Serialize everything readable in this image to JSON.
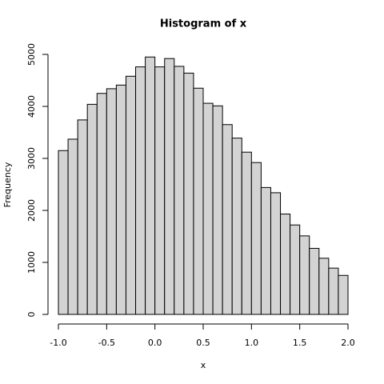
{
  "chart_data": {
    "type": "histogram",
    "title": "Histogram of x",
    "xlabel": "x",
    "ylabel": "Frequency",
    "bins": [
      -1.0,
      -0.9,
      -0.8,
      -0.7,
      -0.6,
      -0.5,
      -0.4,
      -0.3,
      -0.2,
      -0.1,
      0.0,
      0.1,
      0.2,
      0.3,
      0.4,
      0.5,
      0.6,
      0.7,
      0.8,
      0.9,
      1.0,
      1.1,
      1.2,
      1.3,
      1.4,
      1.5,
      1.6,
      1.7,
      1.8,
      1.9,
      2.0
    ],
    "values": [
      3150,
      3370,
      3740,
      4040,
      4250,
      4340,
      4410,
      4580,
      4760,
      4950,
      4760,
      4920,
      4770,
      4640,
      4350,
      4060,
      4010,
      3650,
      3390,
      3120,
      2920,
      2440,
      2340,
      1930,
      1720,
      1510,
      1270,
      1080,
      890,
      750
    ],
    "color": "#d3d3d3",
    "xlim": [
      -1,
      2
    ],
    "xticks": [
      {
        "value": -1,
        "label": "-1.0"
      },
      -0.5,
      {
        "value": 0,
        "label": "0.0"
      },
      0.5,
      {
        "value": 1,
        "label": "1.0"
      },
      1.5,
      {
        "value": 2,
        "label": "2.0"
      }
    ],
    "ylim": [
      0,
      5000
    ],
    "yticks": [
      0,
      1000,
      2000,
      3000,
      4000,
      5000
    ]
  }
}
